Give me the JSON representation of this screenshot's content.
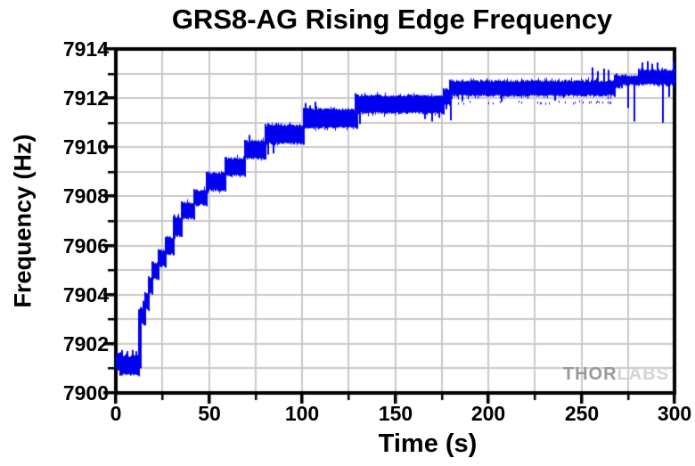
{
  "title": "GRS8-AG Rising Edge Frequency",
  "watermark": {
    "thor": "THOR",
    "labs": "LABS"
  },
  "chart_data": {
    "type": "line",
    "title": "GRS8-AG Rising Edge Frequency",
    "xlabel": "Time (s)",
    "ylabel": "Frequency (Hz)",
    "xlim": [
      0,
      300
    ],
    "ylim": [
      7900,
      7914
    ],
    "x_major_ticks": [
      0,
      50,
      100,
      150,
      200,
      250,
      300
    ],
    "x_minor_ticks": [
      25,
      75,
      125,
      175,
      225,
      275
    ],
    "y_major_ticks": [
      7900,
      7902,
      7904,
      7906,
      7908,
      7910,
      7912,
      7914
    ],
    "y_minor_ticks": [
      7901,
      7903,
      7905,
      7907,
      7909,
      7911,
      7913
    ],
    "grid": {
      "vertical_lines_s": [
        25,
        50,
        75,
        100,
        125,
        150,
        175,
        200,
        225,
        250,
        275
      ],
      "horizontal_lines_hz": [
        7901,
        7902,
        7903,
        7904,
        7905,
        7906,
        7907,
        7908,
        7909,
        7910,
        7911,
        7912,
        7913
      ],
      "color": "#c9c9c9"
    },
    "legend": "none",
    "series_name": "Rising edge frequency",
    "series_color": "#0000ee",
    "noise_seed": 20,
    "band_segments_t0_t1_flo_fhi": [
      [
        0.0,
        2.5,
        7900.9,
        7901.65
      ],
      [
        2.5,
        12.5,
        7900.7,
        7901.55
      ],
      [
        12.5,
        13.6,
        7901.0,
        7903.4
      ],
      [
        13.6,
        15.6,
        7902.75,
        7903.5
      ],
      [
        15.6,
        17.6,
        7903.35,
        7904.1
      ],
      [
        17.6,
        19.6,
        7904.0,
        7904.75
      ],
      [
        19.6,
        23.0,
        7904.6,
        7905.35
      ],
      [
        23.0,
        27.0,
        7905.1,
        7905.85
      ],
      [
        27.0,
        31.0,
        7905.6,
        7906.35
      ],
      [
        31.0,
        35.5,
        7906.35,
        7907.2
      ],
      [
        35.5,
        42.0,
        7907.05,
        7907.8
      ],
      [
        42.0,
        49.0,
        7907.6,
        7908.3
      ],
      [
        49.0,
        59.0,
        7908.2,
        7909.0
      ],
      [
        59.0,
        69.5,
        7908.8,
        7909.6
      ],
      [
        69.5,
        80.5,
        7909.5,
        7910.3
      ],
      [
        80.5,
        101.0,
        7910.1,
        7910.95
      ],
      [
        101.0,
        129.5,
        7910.75,
        7911.6
      ],
      [
        129.5,
        176.0,
        7911.35,
        7912.15
      ],
      [
        176.0,
        179.5,
        7911.7,
        7912.4
      ],
      [
        179.5,
        268.0,
        7912.05,
        7912.75
      ],
      [
        268.0,
        272.0,
        7912.4,
        7912.95
      ],
      [
        272.0,
        281.0,
        7912.5,
        7912.95
      ],
      [
        281.0,
        300.0,
        7912.5,
        7913.2
      ]
    ],
    "spikes_t_f": [
      [
        3.5,
        7901.75
      ],
      [
        6.2,
        7901.7
      ],
      [
        9.0,
        7901.75
      ],
      [
        11.0,
        7901.7
      ],
      [
        14.9,
        7903.75
      ],
      [
        72.0,
        7910.5
      ],
      [
        82.0,
        7909.7
      ],
      [
        84.5,
        7909.75
      ],
      [
        102.0,
        7911.8
      ],
      [
        104.5,
        7911.7
      ],
      [
        107.0,
        7911.85
      ],
      [
        128.8,
        7912.2
      ],
      [
        131.0,
        7910.95
      ],
      [
        166.0,
        7911.15
      ],
      [
        170.0,
        7911.05
      ],
      [
        173.5,
        7911.2
      ],
      [
        177.5,
        7911.55
      ],
      [
        179.8,
        7911.1
      ],
      [
        186.0,
        7911.9
      ],
      [
        207.0,
        7911.85
      ],
      [
        236.0,
        7911.9
      ],
      [
        256.0,
        7913.25
      ],
      [
        259.0,
        7913.1
      ],
      [
        262.0,
        7913.2
      ],
      [
        264.5,
        7913.15
      ],
      [
        269.0,
        7913.0
      ],
      [
        275.0,
        7911.6
      ],
      [
        278.5,
        7911.05
      ],
      [
        283.0,
        7913.45
      ],
      [
        285.5,
        7913.5
      ],
      [
        288.0,
        7913.4
      ],
      [
        291.0,
        7913.45
      ],
      [
        294.0,
        7911.0
      ],
      [
        297.0,
        7912.05
      ],
      [
        299.3,
        7913.5
      ]
    ],
    "fuzz_below_t0_t1_f": [
      [
        183.0,
        266.0,
        7911.88
      ]
    ]
  }
}
